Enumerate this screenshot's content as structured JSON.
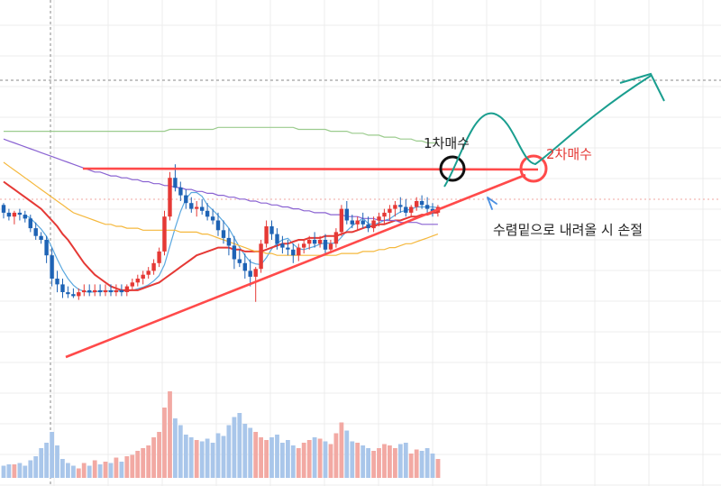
{
  "chart_data": {
    "type": "candlestick",
    "title": "",
    "xlabel": "",
    "ylabel": "",
    "grid": true,
    "ylim": [
      0,
      100
    ],
    "volume_ylim": [
      0,
      100
    ],
    "candles": [
      [
        78,
        79,
        71,
        74
      ],
      [
        74,
        76,
        70,
        72
      ],
      [
        72,
        75,
        68,
        74
      ],
      [
        74,
        76,
        70,
        73
      ],
      [
        73,
        75,
        69,
        71
      ],
      [
        71,
        73,
        64,
        66
      ],
      [
        66,
        69,
        60,
        62
      ],
      [
        62,
        64,
        58,
        60
      ],
      [
        60,
        62,
        48,
        52
      ],
      [
        52,
        56,
        36,
        40
      ],
      [
        40,
        44,
        33,
        37
      ],
      [
        37,
        40,
        30,
        33
      ],
      [
        33,
        36,
        30,
        32
      ],
      [
        32,
        35,
        30,
        31
      ],
      [
        31,
        35,
        29,
        33
      ],
      [
        33,
        37,
        31,
        34
      ],
      [
        34,
        37,
        31,
        33
      ],
      [
        33,
        37,
        31,
        34
      ],
      [
        34,
        37,
        31,
        33
      ],
      [
        33,
        37,
        31,
        34
      ],
      [
        34,
        37,
        31,
        33
      ],
      [
        33,
        37,
        31,
        34
      ],
      [
        34,
        37,
        31,
        33
      ],
      [
        33,
        37,
        31,
        36
      ],
      [
        36,
        40,
        34,
        38
      ],
      [
        38,
        42,
        36,
        40
      ],
      [
        40,
        44,
        37,
        42
      ],
      [
        42,
        46,
        40,
        44
      ],
      [
        44,
        50,
        42,
        48
      ],
      [
        48,
        56,
        46,
        54
      ],
      [
        54,
        75,
        52,
        72
      ],
      [
        72,
        95,
        70,
        92
      ],
      [
        92,
        99,
        85,
        87
      ],
      [
        87,
        90,
        80,
        83
      ],
      [
        83,
        86,
        76,
        79
      ],
      [
        79,
        82,
        74,
        76
      ],
      [
        76,
        80,
        72,
        77
      ],
      [
        77,
        81,
        73,
        75
      ],
      [
        75,
        79,
        70,
        72
      ],
      [
        72,
        76,
        68,
        70
      ],
      [
        70,
        74,
        62,
        65
      ],
      [
        65,
        70,
        58,
        61
      ],
      [
        61,
        66,
        52,
        57
      ],
      [
        57,
        62,
        45,
        50
      ],
      [
        50,
        55,
        46,
        48
      ],
      [
        48,
        53,
        40,
        44
      ],
      [
        44,
        50,
        36,
        41
      ],
      [
        41,
        46,
        28,
        45
      ],
      [
        45,
        60,
        43,
        58
      ],
      [
        58,
        70,
        56,
        67
      ],
      [
        67,
        70,
        60,
        63
      ],
      [
        63,
        66,
        55,
        58
      ],
      [
        58,
        62,
        53,
        56
      ],
      [
        56,
        60,
        52,
        55
      ],
      [
        55,
        58,
        48,
        52
      ],
      [
        52,
        58,
        49,
        56
      ],
      [
        56,
        60,
        53,
        58
      ],
      [
        58,
        62,
        55,
        60
      ],
      [
        60,
        64,
        56,
        58
      ],
      [
        58,
        62,
        56,
        60
      ],
      [
        60,
        63,
        52,
        55
      ],
      [
        55,
        60,
        53,
        58
      ],
      [
        58,
        66,
        56,
        64
      ],
      [
        64,
        78,
        62,
        76
      ],
      [
        76,
        80,
        68,
        70
      ],
      [
        70,
        73,
        66,
        68
      ],
      [
        68,
        72,
        65,
        70
      ],
      [
        70,
        74,
        66,
        68
      ],
      [
        68,
        72,
        64,
        66
      ],
      [
        66,
        72,
        64,
        70
      ],
      [
        70,
        74,
        67,
        72
      ],
      [
        72,
        76,
        68,
        74
      ],
      [
        74,
        78,
        70,
        76
      ],
      [
        76,
        80,
        72,
        78
      ],
      [
        78,
        82,
        74,
        77
      ],
      [
        77,
        81,
        72,
        74
      ],
      [
        74,
        78,
        72,
        77
      ],
      [
        77,
        82,
        75,
        80
      ],
      [
        80,
        83,
        76,
        78
      ],
      [
        78,
        82,
        74,
        76
      ],
      [
        76,
        79,
        72,
        74
      ],
      [
        74,
        78,
        72,
        77
      ]
    ],
    "volume": [
      9,
      10,
      10,
      11,
      9,
      13,
      16,
      22,
      26,
      34,
      24,
      14,
      11,
      9,
      7,
      11,
      9,
      13,
      10,
      12,
      11,
      15,
      12,
      16,
      17,
      20,
      22,
      24,
      30,
      34,
      52,
      64,
      44,
      39,
      32,
      30,
      28,
      27,
      29,
      26,
      33,
      31,
      39,
      45,
      48,
      40,
      37,
      34,
      30,
      28,
      30,
      32,
      26,
      28,
      24,
      22,
      26,
      28,
      30,
      29,
      27,
      25,
      33,
      41,
      35,
      27,
      26,
      24,
      22,
      20,
      22,
      25,
      24,
      22,
      25,
      26,
      18,
      21,
      20,
      22,
      18,
      14
    ],
    "moving_averages": [
      {
        "period": 5,
        "color": "#5aa8e0",
        "values": [
          null,
          null,
          null,
          null,
          72.8,
          71.2,
          68.4,
          65.6,
          61.8,
          56.0,
          50.0,
          44.4,
          40.0,
          36.6,
          34.4,
          33.4,
          33.0,
          33.2,
          33.6,
          33.6,
          33.6,
          33.6,
          33.6,
          33.6,
          34.0,
          34.8,
          35.6,
          36.8,
          38.8,
          41.6,
          47.2,
          56.8,
          66.2,
          74.6,
          81.2,
          84.4,
          84.4,
          82.4,
          78.0,
          75.4,
          72.6,
          69.4,
          66.0,
          61.0,
          56.2,
          52.0,
          48.6,
          47.6,
          47.2,
          50.8,
          55.4,
          58.2,
          60.0,
          60.8,
          57.8,
          55.4,
          55.0,
          55.8,
          56.6,
          57.8,
          58.4,
          58.2,
          58.4,
          61.4,
          64.6,
          67.2,
          69.2,
          71.2,
          68.4,
          67.8,
          68.8,
          70.0,
          70.8,
          72.8,
          74.4,
          75.2,
          75.8,
          77.0,
          77.0,
          77.0,
          77.0,
          76.6
        ]
      },
      {
        "period": 20,
        "color": "#e53935",
        "values": [
          90,
          88,
          86,
          84,
          82,
          80,
          78,
          76,
          73,
          70,
          67,
          63,
          60,
          56,
          52,
          48,
          45,
          42,
          40,
          38,
          36,
          35,
          34,
          34,
          34,
          34,
          35,
          36,
          37,
          38,
          40,
          42,
          44,
          46,
          48,
          50,
          52,
          53,
          54,
          55,
          56,
          56,
          56,
          55,
          55,
          54,
          54,
          54,
          54,
          55,
          56,
          57,
          58,
          58,
          59,
          60,
          60,
          61,
          61,
          61,
          62,
          62,
          62,
          63,
          64,
          64,
          65,
          66,
          67,
          67,
          68,
          68,
          69,
          70,
          70,
          71,
          72,
          72,
          73,
          73,
          74,
          74
        ]
      },
      {
        "period": 60,
        "color": "#f5b83d",
        "values": [
          100,
          98,
          96,
          94,
          92,
          90,
          88,
          86,
          84,
          82,
          80,
          78,
          76,
          74,
          73,
          72,
          71,
          70,
          69,
          68,
          68,
          67,
          67,
          66,
          66,
          66,
          65,
          65,
          65,
          65,
          65,
          65,
          65,
          64,
          64,
          64,
          64,
          63,
          63,
          62,
          61,
          60,
          59,
          58,
          57,
          56,
          55,
          54,
          54,
          53,
          53,
          52,
          52,
          52,
          52,
          52,
          52,
          52,
          52,
          52,
          52,
          52,
          52,
          53,
          53,
          53,
          53,
          54,
          54,
          54,
          55,
          55,
          56,
          56,
          57,
          58,
          58,
          59,
          60,
          61,
          62,
          63
        ]
      },
      {
        "period": 120,
        "color": "#8a63d2",
        "values": [
          112,
          111,
          110,
          109,
          108,
          107,
          106,
          105,
          104,
          103,
          102,
          101,
          100,
          99,
          98,
          97,
          96,
          95,
          95,
          94,
          93,
          93,
          92,
          92,
          91,
          91,
          90,
          90,
          89,
          89,
          88,
          88,
          87,
          87,
          86,
          86,
          85,
          85,
          84,
          84,
          83,
          83,
          82,
          82,
          81,
          81,
          80,
          80,
          79,
          79,
          78,
          78,
          77,
          77,
          76,
          76,
          75,
          75,
          74,
          74,
          74,
          73,
          73,
          73,
          72,
          72,
          72,
          71,
          71,
          71,
          70,
          70,
          70,
          70,
          69,
          69,
          69,
          69,
          68,
          68,
          68,
          68
        ]
      },
      {
        "period": 240,
        "color": "#9ccc8e",
        "values": [
          116,
          116,
          116,
          116,
          116,
          116,
          116,
          116,
          116,
          116,
          116,
          116,
          116,
          116,
          116,
          116,
          116,
          116,
          116,
          116,
          116,
          116,
          116,
          116,
          116,
          116,
          116,
          116,
          116,
          116,
          116,
          117,
          117,
          117,
          117,
          117,
          117,
          117,
          117,
          117,
          118,
          118,
          118,
          118,
          118,
          118,
          118,
          118,
          118,
          118,
          118,
          118,
          118,
          118,
          118,
          117,
          117,
          117,
          117,
          117,
          117,
          116,
          116,
          116,
          116,
          115,
          115,
          115,
          114,
          114,
          114,
          113,
          113,
          113,
          112,
          112,
          112,
          111,
          111,
          110,
          110,
          110
        ]
      }
    ],
    "annotations": [
      {
        "text": "1차매수",
        "color": "#222222"
      },
      {
        "text": "2차매수",
        "color": "#e53935"
      },
      {
        "text": "수렴밑으로 내려올 시 손절",
        "color": "#222222"
      }
    ],
    "colors": {
      "up": "#e53935",
      "down": "#1e63b5",
      "vol_up": "#f2a9a3",
      "vol_down": "#a9c6ea",
      "trendline": "#ff4a4a",
      "projection": "#1a9e8f",
      "arrow": "#4a90e2",
      "grid": "#ececec"
    }
  },
  "labels": {
    "buy1": "1차매수",
    "buy2": "2차매수",
    "stoploss": "수렴밑으로 내려올 시 손절"
  }
}
